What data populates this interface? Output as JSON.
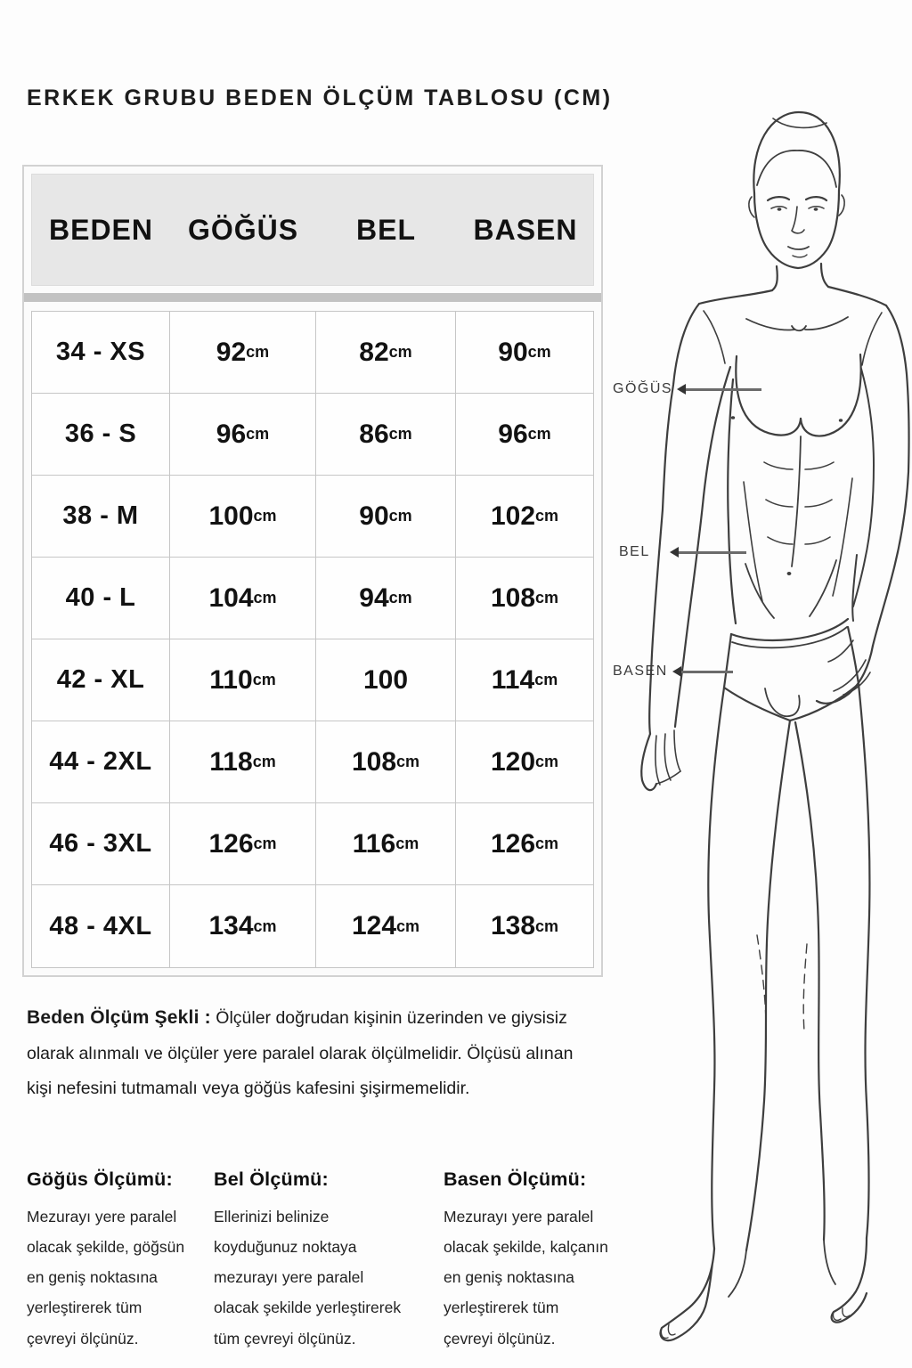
{
  "title": "ERKEK GRUBU BEDEN ÖLÇÜM TABLOSU (CM)",
  "table": {
    "headers": [
      "BEDEN",
      "GÖĞÜS",
      "BEL",
      "BASEN"
    ],
    "rows": [
      [
        "34 - XS",
        "92 cm",
        "82 cm",
        "90 cm"
      ],
      [
        "36 - S",
        "96 cm",
        "86 cm",
        "96 cm"
      ],
      [
        "38 - M",
        "100 cm",
        "90 cm",
        "102 cm"
      ],
      [
        "40 - L",
        "104 cm",
        "94 cm",
        "108 cm"
      ],
      [
        "42 - XL",
        "110 cm",
        "100",
        "114 cm"
      ],
      [
        "44 - 2XL",
        "118cm",
        "108 cm",
        "120 cm"
      ],
      [
        "46 - 3XL",
        "126 cm",
        "116 cm",
        "126 cm"
      ],
      [
        "48 - 4XL",
        "134 cm",
        "124 cm",
        "138 cm"
      ]
    ]
  },
  "note": {
    "label": "Beden Ölçüm Şekli :",
    "text": "Ölçüler doğrudan kişinin üzerinden ve giysisiz\nolarak alınmalı ve ölçüler yere paralel olarak ölçülmelidir. Ölçüsü alınan\nkişi nefesini tutmamalı veya göğüs kafesini şişirmemelidir."
  },
  "instructions": [
    {
      "heading": "Göğüs Ölçümü:",
      "text": "Mezurayı yere paralel\nolacak şekilde, göğsün\nen geniş noktasına\nyerleştirerek tüm\nçevreyi ölçünüz."
    },
    {
      "heading": "Bel Ölçümü:",
      "text": "Ellerinizi belinize\nkoyduğunuz noktaya\nmezurayı yere paralel\nolacak şekilde yerleştirerek\ntüm çevreyi ölçünüz."
    },
    {
      "heading": "Basen Ölçümü:",
      "text": "Mezurayı yere paralel\nolacak şekilde, kalçanın\nen geniş noktasına\nyerleştirerek tüm\nçevreyi ölçünüz."
    }
  ],
  "figure_labels": [
    {
      "label": "GÖĞÜS"
    },
    {
      "label": "BEL"
    },
    {
      "label": "BASEN"
    }
  ],
  "colors": {
    "header_bg": "#e7e7e7",
    "sep": "#c2c2c2",
    "border": "#c6c6c6",
    "text": "#161616",
    "sketch": "#3e3e3e"
  }
}
